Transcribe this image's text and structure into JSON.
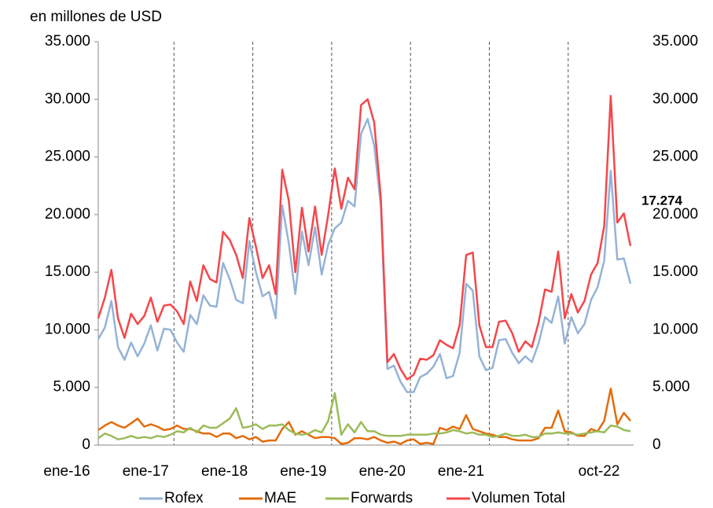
{
  "chart_data": {
    "type": "line",
    "title": "en millones de USD",
    "categories": [
      "ene-16",
      null,
      null,
      null,
      null,
      null,
      null,
      null,
      null,
      null,
      null,
      null,
      "ene-17",
      null,
      null,
      null,
      null,
      null,
      null,
      null,
      null,
      null,
      null,
      null,
      "ene-18",
      null,
      null,
      null,
      null,
      null,
      null,
      null,
      null,
      null,
      null,
      null,
      "ene-19",
      null,
      null,
      null,
      null,
      null,
      null,
      null,
      null,
      null,
      null,
      null,
      "ene-20",
      null,
      null,
      null,
      null,
      null,
      null,
      null,
      null,
      null,
      null,
      null,
      "ene-21",
      null,
      null,
      null,
      null,
      null,
      null,
      null,
      null,
      null,
      null,
      null,
      null,
      null,
      null,
      null,
      null,
      null,
      null,
      null,
      null,
      "oct-22"
    ],
    "ylim": [
      0,
      35000
    ],
    "yticks": [
      {
        "value": 0,
        "label": "0"
      },
      {
        "value": 5000,
        "label": "5.000"
      },
      {
        "value": 10000,
        "label": "10.000"
      },
      {
        "value": 15000,
        "label": "15.000"
      },
      {
        "value": 20000,
        "label": "20.000"
      },
      {
        "value": 25000,
        "label": "25.000"
      },
      {
        "value": 30000,
        "label": "30.000"
      },
      {
        "value": 35000,
        "label": "35.000"
      }
    ],
    "y2lim": [
      0,
      35000
    ],
    "y2ticks": [
      {
        "value": 0,
        "label": "0"
      },
      {
        "value": 5000,
        "label": "5.000"
      },
      {
        "value": 10000,
        "label": "10.000"
      },
      {
        "value": 15000,
        "label": "15.000"
      },
      {
        "value": 20000,
        "label": "20.000"
      },
      {
        "value": 25000,
        "label": "25.000"
      },
      {
        "value": 30000,
        "label": "30.000"
      },
      {
        "value": 35000,
        "label": "35.000"
      }
    ],
    "series": [
      {
        "name": "Rofex",
        "color": "#95b3d7",
        "values": [
          9200,
          10200,
          12500,
          8500,
          7400,
          8900,
          7700,
          8800,
          10400,
          8200,
          10100,
          10000,
          8900,
          8100,
          11300,
          10500,
          13000,
          12100,
          12000,
          15800,
          14400,
          12600,
          12300,
          17700,
          15000,
          12900,
          13300,
          11000,
          20800,
          17500,
          13100,
          18500,
          15600,
          18900,
          14800,
          17400,
          18800,
          19300,
          21200,
          20700,
          27000,
          28300,
          26000,
          20800,
          6600,
          6900,
          5500,
          4600,
          4600,
          5900,
          6200,
          6800,
          7900,
          5800,
          6000,
          8000,
          14000,
          13400,
          7700,
          6500,
          6700,
          9100,
          9200,
          8000,
          7100,
          7700,
          7200,
          8800,
          11100,
          10600,
          12900,
          8800,
          11100,
          9700,
          10500,
          12600,
          13700,
          16000,
          23800,
          16100,
          16200,
          14000
        ]
      },
      {
        "name": "MAE",
        "color": "#e36c0a",
        "values": [
          1300,
          1700,
          2000,
          1700,
          1500,
          1900,
          2300,
          1600,
          1800,
          1600,
          1300,
          1400,
          1700,
          1400,
          1400,
          1200,
          1000,
          1000,
          700,
          1000,
          1000,
          600,
          800,
          500,
          700,
          300,
          400,
          400,
          1400,
          2000,
          900,
          1200,
          900,
          600,
          700,
          700,
          600,
          100,
          200,
          600,
          600,
          500,
          700,
          400,
          200,
          300,
          100,
          400,
          500,
          100,
          200,
          100,
          1500,
          1300,
          1600,
          1400,
          2600,
          1400,
          1200,
          1000,
          900,
          700,
          700,
          500,
          400,
          400,
          400,
          600,
          1500,
          1500,
          3000,
          1200,
          1100,
          800,
          800,
          1400,
          1200,
          2100,
          4900,
          1800,
          2800,
          2100
        ]
      },
      {
        "name": "Forwards",
        "color": "#9bbb59",
        "values": [
          600,
          1000,
          800,
          500,
          600,
          800,
          600,
          700,
          600,
          800,
          700,
          900,
          1200,
          1100,
          1500,
          1100,
          1700,
          1500,
          1500,
          1900,
          2300,
          3200,
          1500,
          1600,
          1800,
          1400,
          1700,
          1700,
          1800,
          1300,
          1000,
          900,
          1000,
          1300,
          1100,
          2100,
          4500,
          900,
          1800,
          1100,
          2000,
          1200,
          1200,
          900,
          800,
          800,
          800,
          900,
          900,
          900,
          900,
          1000,
          1000,
          1100,
          1300,
          1200,
          1000,
          1100,
          900,
          900,
          700,
          800,
          1000,
          800,
          800,
          900,
          700,
          700,
          1000,
          1000,
          1100,
          1000,
          1000,
          900,
          1000,
          1100,
          1200,
          1100,
          1700,
          1600,
          1300,
          1200
        ]
      },
      {
        "name": "Volumen Total",
        "color": "#f4474b",
        "values": [
          11000,
          12800,
          15200,
          11000,
          9300,
          11400,
          10500,
          11200,
          12800,
          10700,
          12100,
          12200,
          11600,
          10500,
          14200,
          12500,
          15600,
          14400,
          14100,
          18500,
          17800,
          16500,
          14500,
          19700,
          17200,
          14500,
          15600,
          13100,
          23900,
          21200,
          15000,
          20600,
          16800,
          20700,
          16500,
          20000,
          24000,
          20500,
          23200,
          22200,
          29500,
          30000,
          28000,
          21500,
          7200,
          7900,
          6600,
          5700,
          6100,
          7500,
          7400,
          7800,
          9100,
          8700,
          8400,
          10400,
          16500,
          16700,
          10400,
          8500,
          8500,
          10700,
          10800,
          9700,
          8100,
          9000,
          8500,
          10600,
          13500,
          13300,
          16800,
          11000,
          13100,
          11500,
          12500,
          14800,
          15800,
          19000,
          30300,
          19300,
          20100,
          17274
        ],
        "value_labels": [
          null,
          null,
          null,
          null,
          null,
          null,
          null,
          null,
          null,
          null,
          null,
          null,
          null,
          null,
          null,
          null,
          null,
          null,
          null,
          null,
          null,
          null,
          null,
          null,
          null,
          null,
          null,
          null,
          null,
          null,
          null,
          null,
          null,
          null,
          null,
          null,
          null,
          null,
          null,
          null,
          null,
          null,
          null,
          null,
          null,
          null,
          null,
          null,
          null,
          null,
          null,
          null,
          null,
          null,
          null,
          null,
          null,
          null,
          null,
          null,
          null,
          null,
          null,
          null,
          null,
          null,
          null,
          null,
          null,
          null,
          null,
          null,
          null,
          null,
          null,
          null,
          null,
          null,
          null,
          null,
          null,
          "17.274"
        ]
      }
    ]
  }
}
